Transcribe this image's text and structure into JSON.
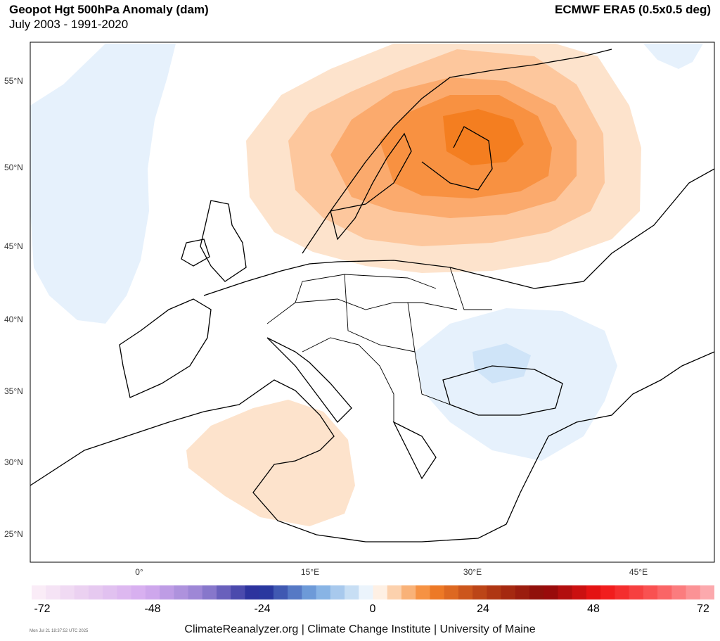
{
  "header": {
    "title": "Geopot Hgt 500hPa Anomaly (dam)",
    "subtitle": "July 2003 - 1991-2020",
    "source": "ECMWF ERA5 (0.5x0.5 deg)"
  },
  "map": {
    "projection": "lambert-conformal (Europe)",
    "lat_labels": [
      "55°N",
      "50°N",
      "45°N",
      "40°N",
      "35°N",
      "30°N",
      "25°N"
    ],
    "lon_labels": [
      "0°",
      "15°E",
      "30°E",
      "45°E"
    ],
    "anomaly_regions": [
      {
        "name": "scandinavia-positive",
        "sign": "positive",
        "peak_dam": 14
      },
      {
        "name": "mediterranean-positive",
        "sign": "positive",
        "peak_dam": 3
      },
      {
        "name": "black-sea-negative",
        "sign": "negative",
        "peak_dam": -4
      },
      {
        "name": "atlantic-negative",
        "sign": "negative",
        "peak_dam": -2
      }
    ],
    "colors": {
      "positive_1": "#fde3cc",
      "positive_2": "#fdc79d",
      "positive_3": "#fbaa6d",
      "positive_4": "#f89141",
      "positive_5": "#f47e20",
      "negative_1": "#e6f1fc",
      "negative_2": "#cfe4f8",
      "ocean": "#ffffff",
      "land_border": "#000000"
    }
  },
  "colorbar": {
    "labels": [
      "-72",
      "-48",
      "-24",
      "0",
      "24",
      "48",
      "72"
    ],
    "min": -72,
    "max": 72,
    "step": 3
  },
  "footer": {
    "credit": "ClimateReanalyzer.org | Climate Change Institute | University of Maine",
    "timestamp": "Mon Jul 21 18:37:52 UTC 2025"
  }
}
